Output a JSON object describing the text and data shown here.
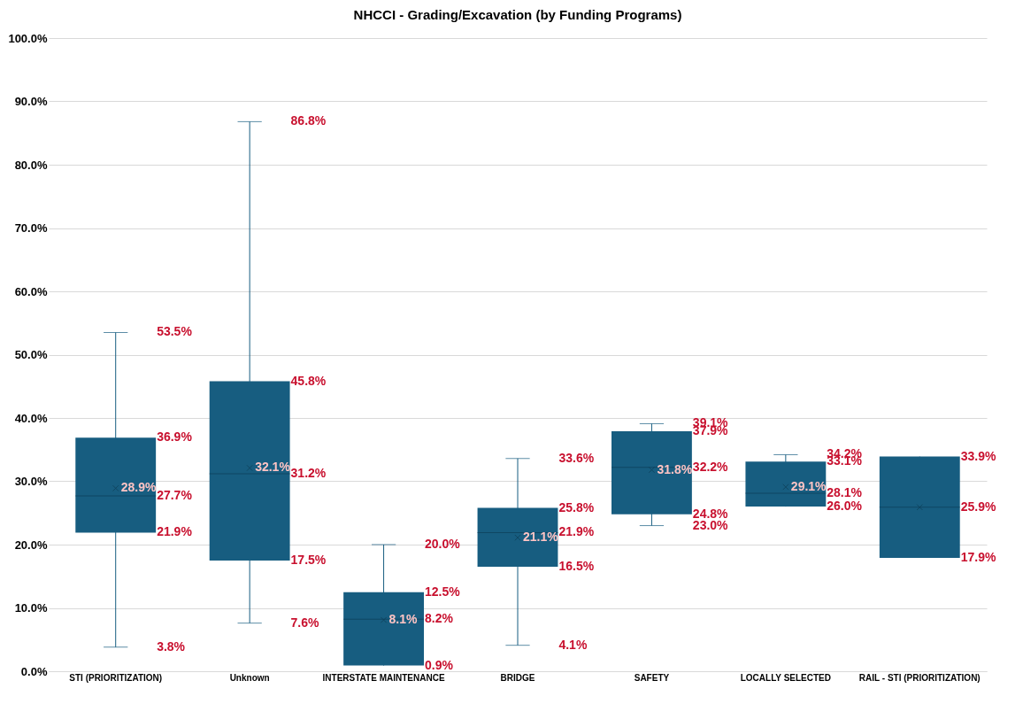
{
  "chart_data": {
    "type": "box",
    "title": "NHCCI - Grading/Excavation (by Funding Programs)",
    "categories": [
      "STI (PRIORITIZATION)",
      "Unknown",
      "INTERSTATE MAINTENANCE",
      "BRIDGE",
      "SAFETY",
      "LOCALLY SELECTED",
      "RAIL - STI (PRIORITIZATION)"
    ],
    "boxes": [
      {
        "low": 3.8,
        "q1": 21.9,
        "median": 27.7,
        "q3": 36.9,
        "high": 53.5,
        "mean": 28.9
      },
      {
        "low": 7.6,
        "q1": 17.5,
        "median": 31.2,
        "q3": 45.8,
        "high": 86.8,
        "mean": 32.1
      },
      {
        "low": 0.9,
        "q1": 0.9,
        "median": 8.2,
        "q3": 12.5,
        "high": 20.0,
        "mean": 8.1
      },
      {
        "low": 4.1,
        "q1": 16.5,
        "median": 21.9,
        "q3": 25.8,
        "high": 33.6,
        "mean": 21.1
      },
      {
        "low": 23.0,
        "q1": 24.8,
        "median": 32.2,
        "q3": 37.9,
        "high": 39.1,
        "mean": 31.8
      },
      {
        "low": 26.0,
        "q1": 26.0,
        "median": 28.1,
        "q3": 33.1,
        "high": 34.2,
        "mean": 29.1
      },
      {
        "low": 17.9,
        "q1": 17.9,
        "median": 25.9,
        "q3": 33.9,
        "high": 33.9,
        "mean": 25.9
      }
    ],
    "annotations": [
      "3.8%",
      "21.9%",
      "27.7%",
      "36.9%",
      "53.5%",
      "28.9%",
      "7.6%",
      "17.5%",
      "31.2%",
      "45.8%",
      "86.8%",
      "32.1%",
      "0.9%",
      "8.2%",
      "12.5%",
      "20.0%",
      "8.1%",
      "4.1%",
      "16.5%",
      "21.9%",
      "25.8%",
      "33.6%",
      "21.1%",
      "23.0%",
      "24.8%",
      "32.2%",
      "37.9%",
      "39.1%",
      "31.8%",
      "26.0%",
      "28.1%",
      "33.1%",
      "34.2%",
      "29.1%",
      "17.9%",
      "25.9%",
      "33.9%"
    ],
    "data_labels": true,
    "color": "#175d80",
    "ylim": [
      0,
      100
    ],
    "yticks": [
      {
        "value": 0,
        "label": "0.0%"
      },
      {
        "value": 10,
        "label": "10.0%"
      },
      {
        "value": 20,
        "label": "20.0%"
      },
      {
        "value": 30,
        "label": "30.0%"
      },
      {
        "value": 40,
        "label": "40.0%"
      },
      {
        "value": 50,
        "label": "50.0%"
      },
      {
        "value": 60,
        "label": "60.0%"
      },
      {
        "value": 70,
        "label": "70.0%"
      },
      {
        "value": 80,
        "label": "80.0%"
      },
      {
        "value": 90,
        "label": "90.0%"
      },
      {
        "value": 100,
        "label": "100.0%"
      }
    ],
    "grid": "y",
    "marker": "cross"
  }
}
